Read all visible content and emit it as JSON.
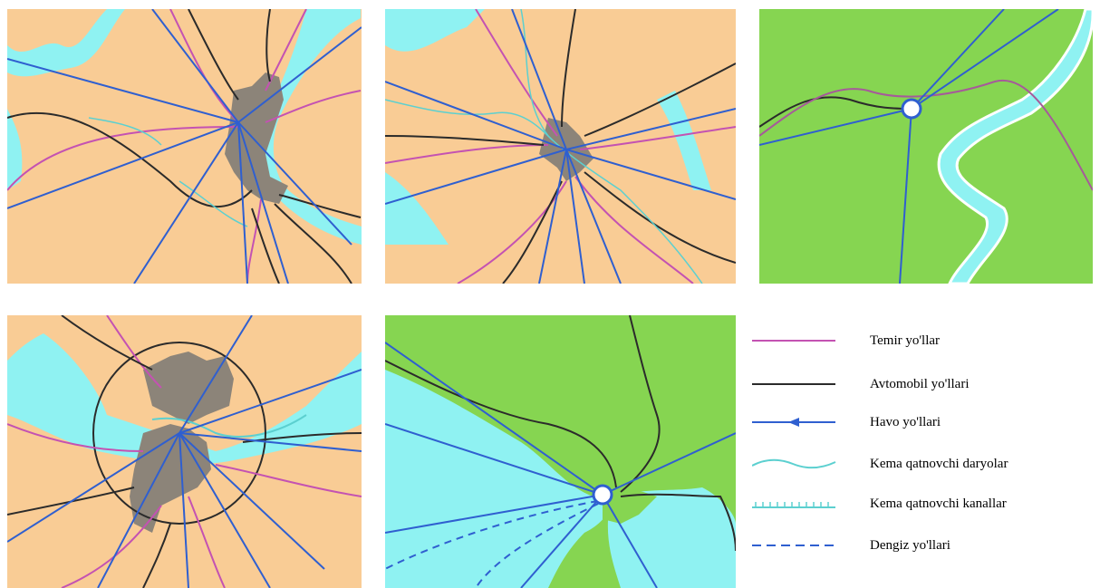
{
  "colors": {
    "land": "#f9cc95",
    "green": "#86d551",
    "water": "#8ff2f2",
    "city": "#8c8479",
    "rail": "#c452b2",
    "road": "#2b2b2b",
    "air": "#2f5fd0",
    "river": "#5cd0d0",
    "canal": "#5cd0d0",
    "sea": "#2f5fd0"
  },
  "legend": {
    "items": [
      {
        "key": "rail",
        "label": "Temir yo'llar",
        "icon": "rail-line-icon"
      },
      {
        "key": "road",
        "label": "Avtomobil yo'llari",
        "icon": "road-line-icon"
      },
      {
        "key": "air",
        "label": "Havo yo'llari",
        "icon": "air-route-arrow-icon"
      },
      {
        "key": "river",
        "label": "Kema qatnovchi daryolar",
        "icon": "wavy-river-icon"
      },
      {
        "key": "canal",
        "label": "Kema qatnovchi kanallar",
        "icon": "hatched-canal-icon"
      },
      {
        "key": "sea",
        "label": "Dengiz yo'llari",
        "icon": "dashed-sea-route-icon"
      }
    ]
  }
}
